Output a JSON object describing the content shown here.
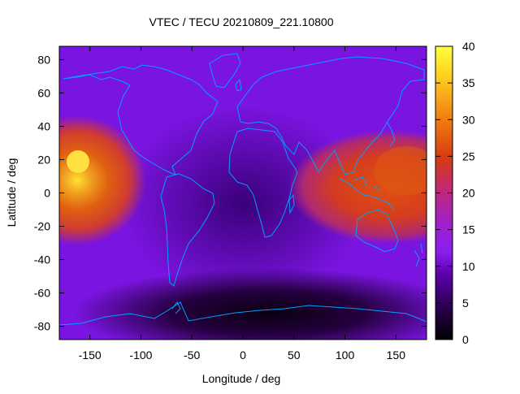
{
  "chart_data": {
    "type": "heatmap",
    "title": "VTEC / TECU 20210809_221.10800",
    "xlabel": "Longitude / deg",
    "ylabel": "Latitude / deg",
    "xlim": [
      -180,
      180
    ],
    "ylim": [
      -88,
      88
    ],
    "x_ticks": [
      -150,
      -100,
      -50,
      0,
      50,
      100,
      150
    ],
    "y_ticks": [
      -80,
      -60,
      -40,
      -20,
      0,
      20,
      40,
      60,
      80
    ],
    "colorbar": {
      "range": [
        0,
        40
      ],
      "ticks": [
        0,
        5,
        10,
        15,
        20,
        25,
        30,
        35,
        40
      ],
      "colors": [
        "#000000",
        "#2a0050",
        "#5a00a8",
        "#8a1ef0",
        "#a020c8",
        "#c22a70",
        "#d83a10",
        "#f07c10",
        "#ffd020",
        "#ffff40"
      ]
    },
    "coastline_color": "#00a0ff",
    "field_features": [
      {
        "name": "pacific-maximum",
        "lon": -165,
        "lat": 18,
        "vtec": 35
      },
      {
        "name": "western-pacific-maximum",
        "lon": 150,
        "lat": 12,
        "vtec": 22
      },
      {
        "name": "southern-polar-minimum",
        "lon": 20,
        "lat": -75,
        "vtec": 2
      },
      {
        "name": "background-level",
        "vtec": 10
      }
    ]
  }
}
